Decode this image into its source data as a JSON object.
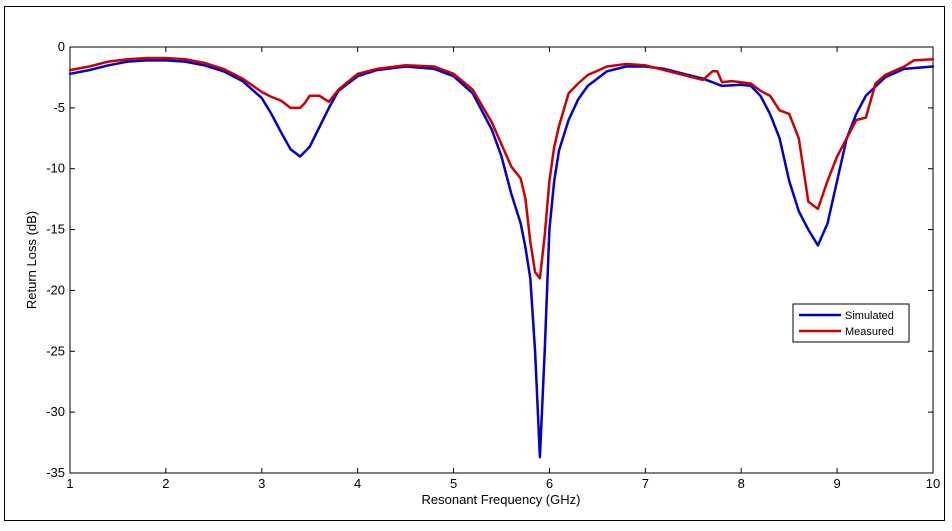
{
  "chart_data": {
    "type": "line",
    "title": "",
    "xlabel": "Resonant Frequency (GHz)",
    "ylabel": "Return Loss (dB)",
    "xlim": [
      1,
      10
    ],
    "ylim": [
      -35,
      0
    ],
    "xticks": [
      "1",
      "2",
      "3",
      "4",
      "5",
      "6",
      "7",
      "8",
      "9",
      "10"
    ],
    "yticks": [
      "0",
      "-5",
      "-10",
      "-15",
      "-20",
      "-25",
      "-30",
      "-35"
    ],
    "grid": false,
    "legend_position": "right",
    "series": [
      {
        "name": "Simulated",
        "color": "#0000cc",
        "x": [
          1.0,
          1.2,
          1.4,
          1.6,
          1.8,
          2.0,
          2.2,
          2.4,
          2.6,
          2.8,
          3.0,
          3.1,
          3.2,
          3.3,
          3.4,
          3.5,
          3.6,
          3.7,
          3.8,
          4.0,
          4.2,
          4.5,
          4.8,
          5.0,
          5.2,
          5.4,
          5.5,
          5.6,
          5.7,
          5.75,
          5.8,
          5.85,
          5.9,
          5.95,
          6.0,
          6.05,
          6.1,
          6.2,
          6.3,
          6.4,
          6.6,
          6.8,
          7.0,
          7.2,
          7.4,
          7.6,
          7.8,
          8.0,
          8.1,
          8.2,
          8.3,
          8.4,
          8.5,
          8.6,
          8.7,
          8.8,
          8.9,
          9.0,
          9.1,
          9.2,
          9.3,
          9.5,
          9.7,
          10.0
        ],
        "y": [
          -2.2,
          -1.9,
          -1.5,
          -1.2,
          -1.1,
          -1.1,
          -1.2,
          -1.5,
          -2.0,
          -2.8,
          -4.2,
          -5.5,
          -7.0,
          -8.4,
          -9.0,
          -8.2,
          -6.6,
          -5.0,
          -3.6,
          -2.4,
          -1.9,
          -1.6,
          -1.8,
          -2.4,
          -3.8,
          -6.8,
          -9.0,
          -12.0,
          -14.5,
          -16.5,
          -19.0,
          -25.0,
          -33.7,
          -25.0,
          -15.0,
          -11.0,
          -8.5,
          -6.0,
          -4.3,
          -3.2,
          -2.0,
          -1.6,
          -1.6,
          -1.8,
          -2.2,
          -2.6,
          -3.2,
          -3.1,
          -3.2,
          -4.0,
          -5.5,
          -7.5,
          -11.0,
          -13.5,
          -15.0,
          -16.3,
          -14.5,
          -11.0,
          -7.5,
          -5.5,
          -4.0,
          -2.5,
          -1.8,
          -1.6
        ]
      },
      {
        "name": "Measured",
        "color": "#cc0000",
        "x": [
          1.0,
          1.2,
          1.4,
          1.6,
          1.8,
          2.0,
          2.2,
          2.4,
          2.6,
          2.8,
          3.0,
          3.1,
          3.2,
          3.3,
          3.4,
          3.45,
          3.5,
          3.6,
          3.7,
          3.8,
          4.0,
          4.2,
          4.5,
          4.8,
          5.0,
          5.2,
          5.4,
          5.5,
          5.6,
          5.7,
          5.75,
          5.8,
          5.85,
          5.9,
          5.95,
          6.0,
          6.05,
          6.1,
          6.2,
          6.3,
          6.4,
          6.6,
          6.8,
          7.0,
          7.2,
          7.4,
          7.6,
          7.7,
          7.75,
          7.8,
          7.9,
          8.0,
          8.1,
          8.2,
          8.3,
          8.4,
          8.5,
          8.6,
          8.7,
          8.8,
          8.9,
          9.0,
          9.1,
          9.2,
          9.3,
          9.4,
          9.5,
          9.7,
          9.8,
          10.0
        ],
        "y": [
          -1.9,
          -1.6,
          -1.2,
          -1.0,
          -0.9,
          -0.9,
          -1.0,
          -1.3,
          -1.8,
          -2.6,
          -3.7,
          -4.1,
          -4.4,
          -5.0,
          -5.0,
          -4.6,
          -4.0,
          -4.0,
          -4.5,
          -3.5,
          -2.2,
          -1.8,
          -1.5,
          -1.6,
          -2.2,
          -3.5,
          -6.2,
          -8.0,
          -9.8,
          -10.8,
          -12.5,
          -16.0,
          -18.5,
          -19.0,
          -15.5,
          -11.0,
          -8.2,
          -6.5,
          -3.8,
          -3.0,
          -2.3,
          -1.6,
          -1.4,
          -1.5,
          -1.9,
          -2.3,
          -2.7,
          -2.0,
          -2.0,
          -2.9,
          -2.8,
          -2.9,
          -3.0,
          -3.6,
          -4.0,
          -5.2,
          -5.5,
          -7.5,
          -12.7,
          -13.3,
          -11.0,
          -9.0,
          -7.5,
          -6.0,
          -5.8,
          -3.0,
          -2.3,
          -1.6,
          -1.1,
          -1.0
        ]
      }
    ]
  }
}
